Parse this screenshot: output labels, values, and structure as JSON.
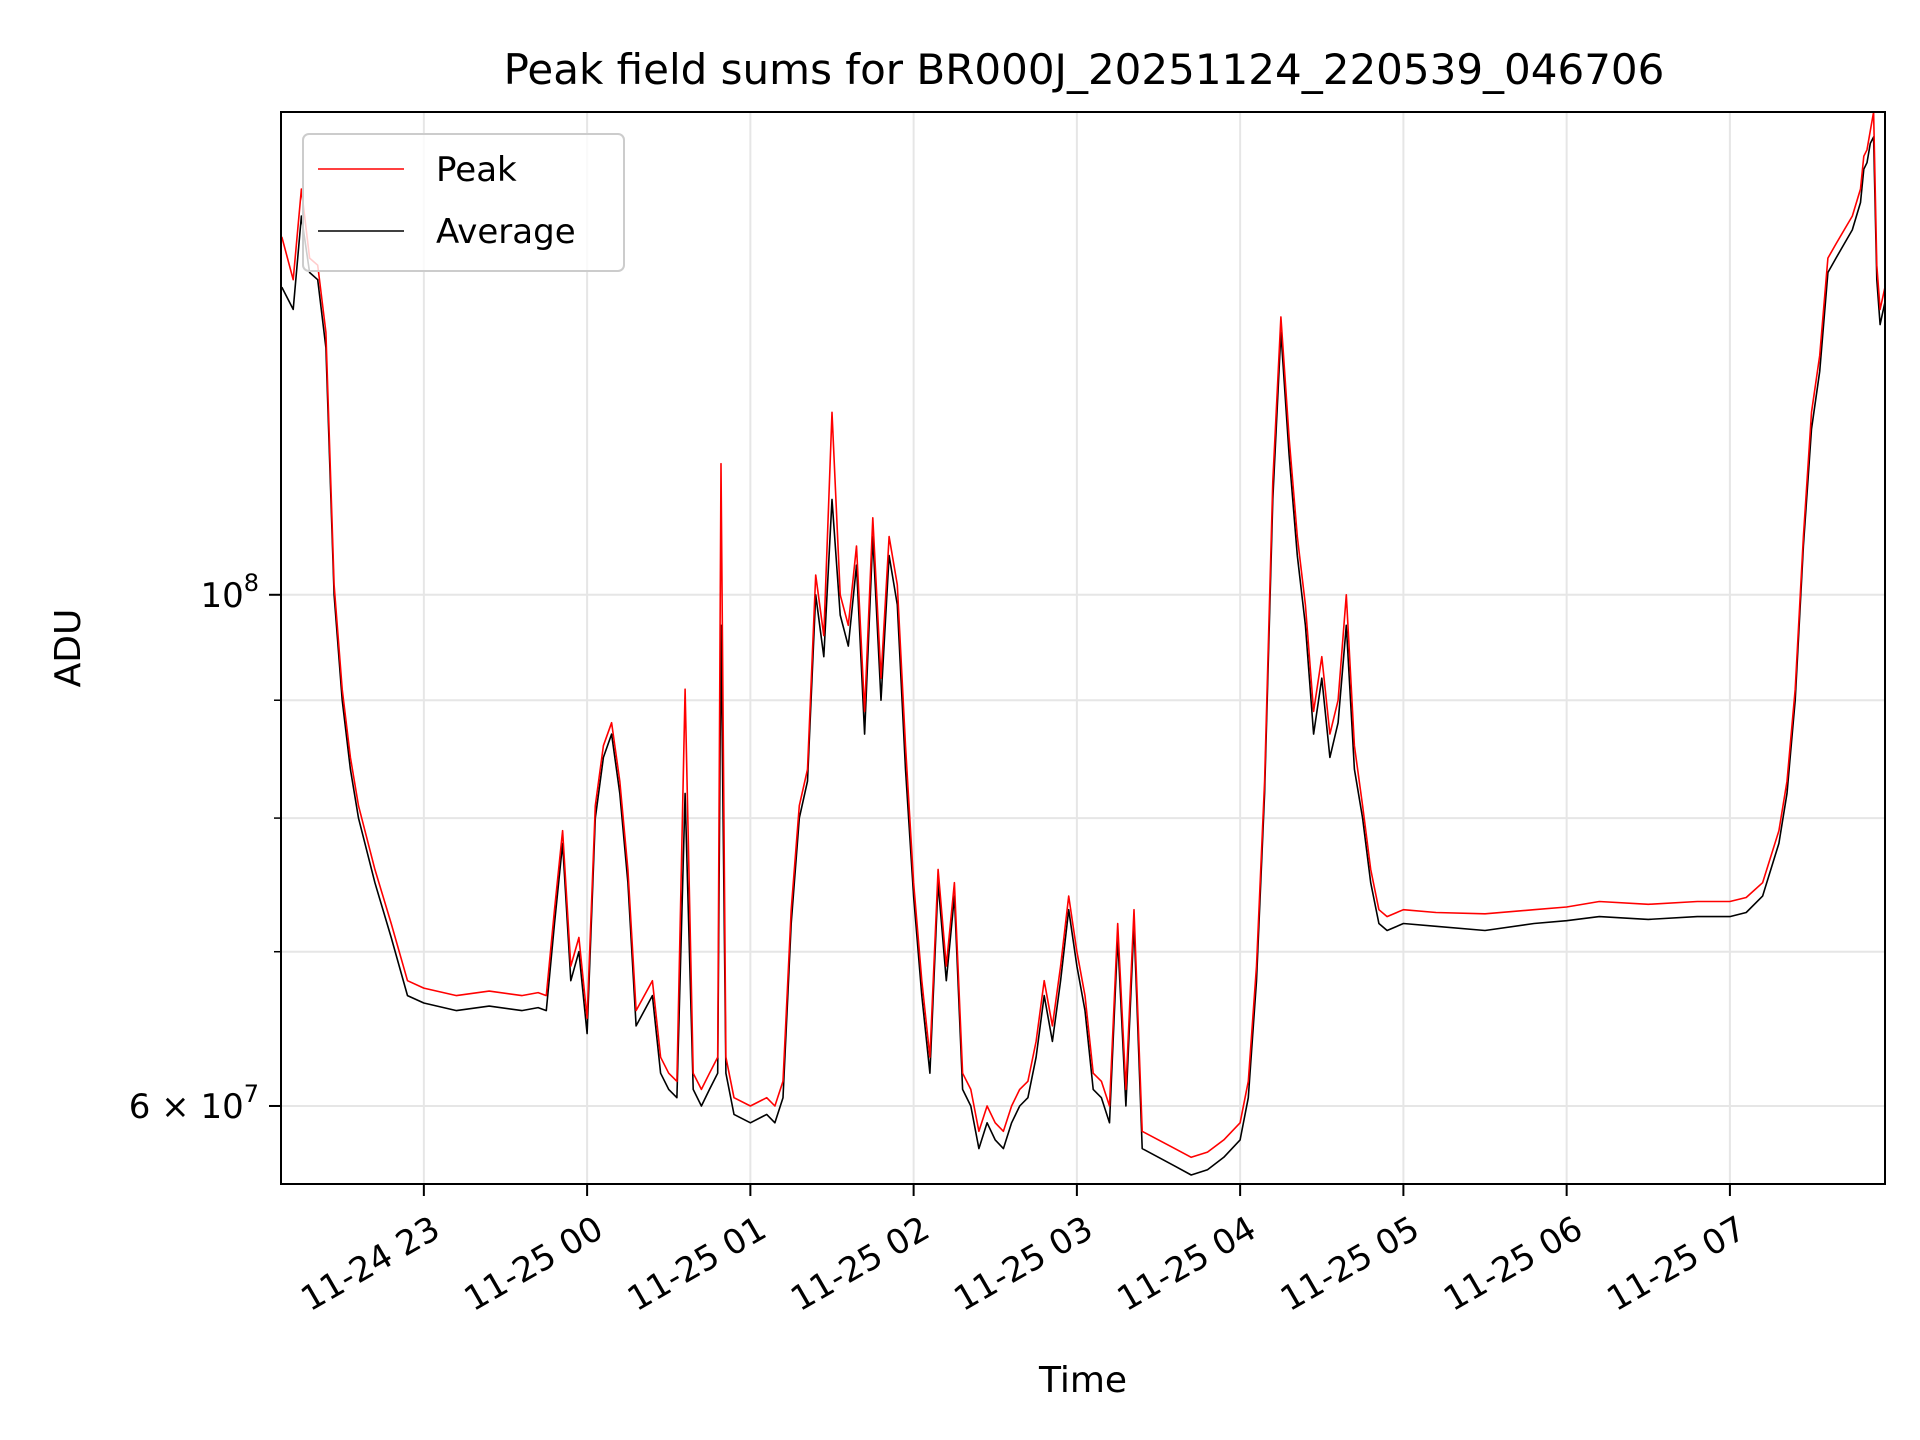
{
  "chart_data": {
    "type": "line",
    "title": "Peak field sums for BR000J_20251124_220539_046706",
    "xlabel": "Time",
    "ylabel": "ADU",
    "yscale": "log",
    "grid": true,
    "legend_position": "top-left",
    "x_unit": "hours since 11-24 22:00",
    "xlim": [
      0.125,
      9.95
    ],
    "ylim": [
      55500000,
      162000000
    ],
    "x_ticks": [
      {
        "value": 1,
        "label": "11-24 23"
      },
      {
        "value": 2,
        "label": "11-25 00"
      },
      {
        "value": 3,
        "label": "11-25 01"
      },
      {
        "value": 4,
        "label": "11-25 02"
      },
      {
        "value": 5,
        "label": "11-25 03"
      },
      {
        "value": 6,
        "label": "11-25 04"
      },
      {
        "value": 7,
        "label": "11-25 05"
      },
      {
        "value": 8,
        "label": "11-25 06"
      },
      {
        "value": 9,
        "label": "11-25 07"
      }
    ],
    "y_ticks": [
      {
        "value": 100000000,
        "base": "10",
        "exp": "8"
      },
      {
        "value": 60000000,
        "mantissa": "6 × 10",
        "exp": "7"
      }
    ],
    "y_minor_ticks": [
      70000000,
      80000000,
      90000000
    ],
    "legend": [
      "Peak",
      "Average"
    ],
    "series": [
      {
        "name": "Average",
        "color": "#000000",
        "points": [
          [
            0.13,
            136000000
          ],
          [
            0.2,
            133000000
          ],
          [
            0.25,
            146000000
          ],
          [
            0.3,
            138000000
          ],
          [
            0.35,
            137000000
          ],
          [
            0.4,
            128000000
          ],
          [
            0.45,
            100000000
          ],
          [
            0.5,
            90000000
          ],
          [
            0.55,
            84000000
          ],
          [
            0.6,
            80000000
          ],
          [
            0.7,
            75000000
          ],
          [
            0.8,
            71000000
          ],
          [
            0.9,
            67000000
          ],
          [
            1.0,
            66500000
          ],
          [
            1.2,
            66000000
          ],
          [
            1.4,
            66300000
          ],
          [
            1.6,
            66000000
          ],
          [
            1.7,
            66200000
          ],
          [
            1.75,
            66000000
          ],
          [
            1.8,
            72000000
          ],
          [
            1.85,
            78000000
          ],
          [
            1.9,
            68000000
          ],
          [
            1.95,
            70000000
          ],
          [
            2.0,
            64500000
          ],
          [
            2.05,
            80000000
          ],
          [
            2.1,
            85000000
          ],
          [
            2.15,
            87000000
          ],
          [
            2.2,
            82000000
          ],
          [
            2.25,
            75000000
          ],
          [
            2.3,
            65000000
          ],
          [
            2.4,
            67000000
          ],
          [
            2.45,
            62000000
          ],
          [
            2.5,
            61000000
          ],
          [
            2.55,
            60500000
          ],
          [
            2.6,
            82000000
          ],
          [
            2.65,
            61000000
          ],
          [
            2.7,
            60000000
          ],
          [
            2.75,
            61000000
          ],
          [
            2.8,
            62000000
          ],
          [
            2.82,
            97000000
          ],
          [
            2.85,
            62000000
          ],
          [
            2.9,
            59500000
          ],
          [
            3.0,
            59000000
          ],
          [
            3.1,
            59500000
          ],
          [
            3.15,
            59000000
          ],
          [
            3.2,
            60500000
          ],
          [
            3.25,
            72000000
          ],
          [
            3.3,
            80000000
          ],
          [
            3.35,
            83000000
          ],
          [
            3.4,
            100000000
          ],
          [
            3.45,
            94000000
          ],
          [
            3.5,
            110000000
          ],
          [
            3.55,
            98000000
          ],
          [
            3.6,
            95000000
          ],
          [
            3.65,
            103000000
          ],
          [
            3.7,
            87000000
          ],
          [
            3.75,
            106000000
          ],
          [
            3.8,
            90000000
          ],
          [
            3.85,
            104000000
          ],
          [
            3.9,
            99000000
          ],
          [
            3.95,
            84000000
          ],
          [
            4.0,
            74000000
          ],
          [
            4.05,
            67000000
          ],
          [
            4.1,
            62000000
          ],
          [
            4.15,
            75000000
          ],
          [
            4.2,
            68000000
          ],
          [
            4.25,
            74000000
          ],
          [
            4.3,
            61000000
          ],
          [
            4.35,
            60000000
          ],
          [
            4.4,
            57500000
          ],
          [
            4.45,
            59000000
          ],
          [
            4.5,
            58000000
          ],
          [
            4.55,
            57500000
          ],
          [
            4.6,
            59000000
          ],
          [
            4.65,
            60000000
          ],
          [
            4.7,
            60500000
          ],
          [
            4.75,
            63000000
          ],
          [
            4.8,
            67000000
          ],
          [
            4.85,
            64000000
          ],
          [
            4.9,
            68000000
          ],
          [
            4.95,
            73000000
          ],
          [
            5.0,
            69000000
          ],
          [
            5.05,
            66000000
          ],
          [
            5.1,
            61000000
          ],
          [
            5.15,
            60500000
          ],
          [
            5.2,
            59000000
          ],
          [
            5.25,
            71000000
          ],
          [
            5.3,
            60000000
          ],
          [
            5.35,
            72000000
          ],
          [
            5.4,
            57500000
          ],
          [
            5.5,
            57000000
          ],
          [
            5.6,
            56500000
          ],
          [
            5.7,
            56000000
          ],
          [
            5.8,
            56300000
          ],
          [
            5.9,
            57000000
          ],
          [
            5.95,
            57500000
          ],
          [
            6.0,
            58000000
          ],
          [
            6.05,
            60500000
          ],
          [
            6.1,
            68000000
          ],
          [
            6.15,
            82000000
          ],
          [
            6.2,
            110000000
          ],
          [
            6.25,
            130000000
          ],
          [
            6.3,
            115000000
          ],
          [
            6.35,
            104000000
          ],
          [
            6.4,
            97000000
          ],
          [
            6.45,
            87000000
          ],
          [
            6.5,
            92000000
          ],
          [
            6.55,
            85000000
          ],
          [
            6.6,
            88000000
          ],
          [
            6.65,
            97000000
          ],
          [
            6.7,
            84000000
          ],
          [
            6.75,
            80000000
          ],
          [
            6.8,
            75000000
          ],
          [
            6.85,
            72000000
          ],
          [
            6.9,
            71500000
          ],
          [
            7.0,
            72000000
          ],
          [
            7.2,
            71800000
          ],
          [
            7.5,
            71500000
          ],
          [
            7.8,
            72000000
          ],
          [
            8.0,
            72200000
          ],
          [
            8.2,
            72500000
          ],
          [
            8.5,
            72300000
          ],
          [
            8.8,
            72500000
          ],
          [
            9.0,
            72500000
          ],
          [
            9.1,
            72800000
          ],
          [
            9.2,
            74000000
          ],
          [
            9.3,
            78000000
          ],
          [
            9.35,
            82000000
          ],
          [
            9.4,
            90000000
          ],
          [
            9.45,
            105000000
          ],
          [
            9.5,
            118000000
          ],
          [
            9.55,
            125000000
          ],
          [
            9.6,
            138000000
          ],
          [
            9.65,
            140000000
          ],
          [
            9.7,
            142000000
          ],
          [
            9.75,
            144000000
          ],
          [
            9.8,
            148000000
          ],
          [
            9.82,
            153000000
          ],
          [
            9.84,
            154000000
          ],
          [
            9.86,
            157000000
          ],
          [
            9.88,
            158000000
          ],
          [
            9.9,
            137000000
          ],
          [
            9.92,
            131000000
          ],
          [
            9.95,
            134000000
          ]
        ]
      },
      {
        "name": "Peak",
        "color": "#ff0000",
        "points": [
          [
            0.13,
            143000000
          ],
          [
            0.2,
            137000000
          ],
          [
            0.25,
            150000000
          ],
          [
            0.3,
            140000000
          ],
          [
            0.35,
            139000000
          ],
          [
            0.4,
            130000000
          ],
          [
            0.45,
            101000000
          ],
          [
            0.5,
            91000000
          ],
          [
            0.55,
            85000000
          ],
          [
            0.6,
            81000000
          ],
          [
            0.7,
            76000000
          ],
          [
            0.8,
            72000000
          ],
          [
            0.9,
            68000000
          ],
          [
            1.0,
            67500000
          ],
          [
            1.2,
            67000000
          ],
          [
            1.4,
            67300000
          ],
          [
            1.6,
            67000000
          ],
          [
            1.7,
            67200000
          ],
          [
            1.75,
            67000000
          ],
          [
            1.8,
            73000000
          ],
          [
            1.85,
            79000000
          ],
          [
            1.9,
            69000000
          ],
          [
            1.95,
            71000000
          ],
          [
            2.0,
            65500000
          ],
          [
            2.05,
            81000000
          ],
          [
            2.1,
            86000000
          ],
          [
            2.15,
            88000000
          ],
          [
            2.2,
            83000000
          ],
          [
            2.25,
            76000000
          ],
          [
            2.3,
            66000000
          ],
          [
            2.4,
            68000000
          ],
          [
            2.45,
            63000000
          ],
          [
            2.5,
            62000000
          ],
          [
            2.55,
            61500000
          ],
          [
            2.6,
            91000000
          ],
          [
            2.65,
            62000000
          ],
          [
            2.7,
            61000000
          ],
          [
            2.75,
            62000000
          ],
          [
            2.8,
            63000000
          ],
          [
            2.82,
            114000000
          ],
          [
            2.85,
            63000000
          ],
          [
            2.9,
            60500000
          ],
          [
            3.0,
            60000000
          ],
          [
            3.1,
            60500000
          ],
          [
            3.15,
            60000000
          ],
          [
            3.2,
            61500000
          ],
          [
            3.25,
            73000000
          ],
          [
            3.3,
            81000000
          ],
          [
            3.35,
            84000000
          ],
          [
            3.4,
            102000000
          ],
          [
            3.45,
            96000000
          ],
          [
            3.5,
            120000000
          ],
          [
            3.55,
            100000000
          ],
          [
            3.6,
            97000000
          ],
          [
            3.65,
            105000000
          ],
          [
            3.7,
            89000000
          ],
          [
            3.75,
            108000000
          ],
          [
            3.8,
            92000000
          ],
          [
            3.85,
            106000000
          ],
          [
            3.9,
            101000000
          ],
          [
            3.95,
            86000000
          ],
          [
            4.0,
            75000000
          ],
          [
            4.05,
            68000000
          ],
          [
            4.1,
            63000000
          ],
          [
            4.15,
            76000000
          ],
          [
            4.2,
            69000000
          ],
          [
            4.25,
            75000000
          ],
          [
            4.3,
            62000000
          ],
          [
            4.35,
            61000000
          ],
          [
            4.4,
            58500000
          ],
          [
            4.45,
            60000000
          ],
          [
            4.5,
            59000000
          ],
          [
            4.55,
            58500000
          ],
          [
            4.6,
            60000000
          ],
          [
            4.65,
            61000000
          ],
          [
            4.7,
            61500000
          ],
          [
            4.75,
            64000000
          ],
          [
            4.8,
            68000000
          ],
          [
            4.85,
            65000000
          ],
          [
            4.9,
            69000000
          ],
          [
            4.95,
            74000000
          ],
          [
            5.0,
            70000000
          ],
          [
            5.05,
            67000000
          ],
          [
            5.1,
            62000000
          ],
          [
            5.15,
            61500000
          ],
          [
            5.2,
            60000000
          ],
          [
            5.25,
            72000000
          ],
          [
            5.3,
            61000000
          ],
          [
            5.35,
            73000000
          ],
          [
            5.4,
            58500000
          ],
          [
            5.5,
            58000000
          ],
          [
            5.6,
            57500000
          ],
          [
            5.7,
            57000000
          ],
          [
            5.8,
            57300000
          ],
          [
            5.9,
            58000000
          ],
          [
            5.95,
            58500000
          ],
          [
            6.0,
            59000000
          ],
          [
            6.05,
            61500000
          ],
          [
            6.1,
            69000000
          ],
          [
            6.15,
            83000000
          ],
          [
            6.2,
            112000000
          ],
          [
            6.25,
            132000000
          ],
          [
            6.3,
            117000000
          ],
          [
            6.35,
            106000000
          ],
          [
            6.4,
            99000000
          ],
          [
            6.45,
            89000000
          ],
          [
            6.5,
            94000000
          ],
          [
            6.55,
            87000000
          ],
          [
            6.6,
            90000000
          ],
          [
            6.65,
            100000000
          ],
          [
            6.7,
            86000000
          ],
          [
            6.75,
            81000000
          ],
          [
            6.8,
            76000000
          ],
          [
            6.85,
            73000000
          ],
          [
            6.9,
            72500000
          ],
          [
            7.0,
            73000000
          ],
          [
            7.2,
            72800000
          ],
          [
            7.5,
            72700000
          ],
          [
            7.8,
            73000000
          ],
          [
            8.0,
            73200000
          ],
          [
            8.2,
            73600000
          ],
          [
            8.5,
            73400000
          ],
          [
            8.8,
            73600000
          ],
          [
            9.0,
            73600000
          ],
          [
            9.1,
            73900000
          ],
          [
            9.2,
            75000000
          ],
          [
            9.3,
            79000000
          ],
          [
            9.35,
            83000000
          ],
          [
            9.4,
            91000000
          ],
          [
            9.45,
            106000000
          ],
          [
            9.5,
            120000000
          ],
          [
            9.55,
            127000000
          ],
          [
            9.6,
            140000000
          ],
          [
            9.65,
            142000000
          ],
          [
            9.7,
            144000000
          ],
          [
            9.75,
            146000000
          ],
          [
            9.8,
            150000000
          ],
          [
            9.82,
            155000000
          ],
          [
            9.84,
            156000000
          ],
          [
            9.86,
            159000000
          ],
          [
            9.88,
            162000000
          ],
          [
            9.9,
            139000000
          ],
          [
            9.92,
            133000000
          ],
          [
            9.95,
            136000000
          ]
        ]
      }
    ]
  }
}
